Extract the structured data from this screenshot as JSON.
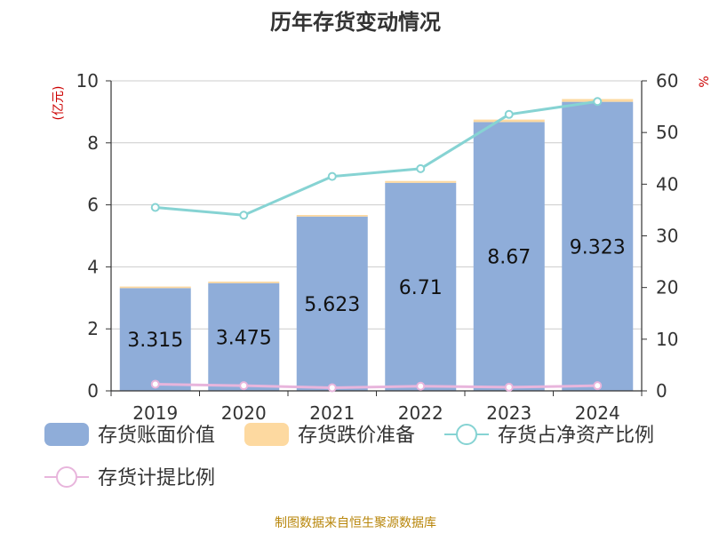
{
  "footer": "制图数据来自恒生聚源数据库",
  "colors": {
    "bar_book": "#8fadd9",
    "bar_reserve": "#fdd9a0",
    "line_ratio": "#86d3d3",
    "line_provision": "#e8b5dc",
    "axis": "#333333",
    "grid": "#cccccc",
    "left_unit": "#cc0000",
    "right_unit": "#cc0000",
    "footer": "#b8860b"
  },
  "chart_data": {
    "type": "bar",
    "title": "历年存货变动情况",
    "categories": [
      "2019",
      "2020",
      "2021",
      "2022",
      "2023",
      "2024"
    ],
    "ylabel_left": "(亿元)",
    "ylabel_right": "%",
    "ylim_left": [
      0,
      10
    ],
    "ylim_right": [
      0,
      60
    ],
    "yticks_left": [
      "0",
      "2",
      "4",
      "6",
      "8",
      "10"
    ],
    "yticks_right": [
      "0",
      "10",
      "20",
      "30",
      "40",
      "50",
      "60"
    ],
    "grid": true,
    "legend_position": "bottom",
    "series": [
      {
        "name": "存货账面价值",
        "kind": "bar",
        "axis": "left",
        "stack": "a",
        "values": [
          3.315,
          3.475,
          5.623,
          6.71,
          8.67,
          9.323
        ],
        "labels": [
          "3.315",
          "3.475",
          "5.623",
          "6.71",
          "8.67",
          "9.323"
        ]
      },
      {
        "name": "存货跌价准备",
        "kind": "bar",
        "axis": "left",
        "stack": "a",
        "values": [
          0.05,
          0.05,
          0.05,
          0.06,
          0.08,
          0.09
        ]
      },
      {
        "name": "存货占净资产比例",
        "kind": "line",
        "axis": "right",
        "values": [
          35.5,
          34.0,
          41.5,
          43.0,
          53.5,
          56.0
        ]
      },
      {
        "name": "存货计提比例",
        "kind": "line",
        "axis": "right",
        "values": [
          1.3,
          1.0,
          0.6,
          0.9,
          0.7,
          1.0
        ]
      }
    ]
  }
}
